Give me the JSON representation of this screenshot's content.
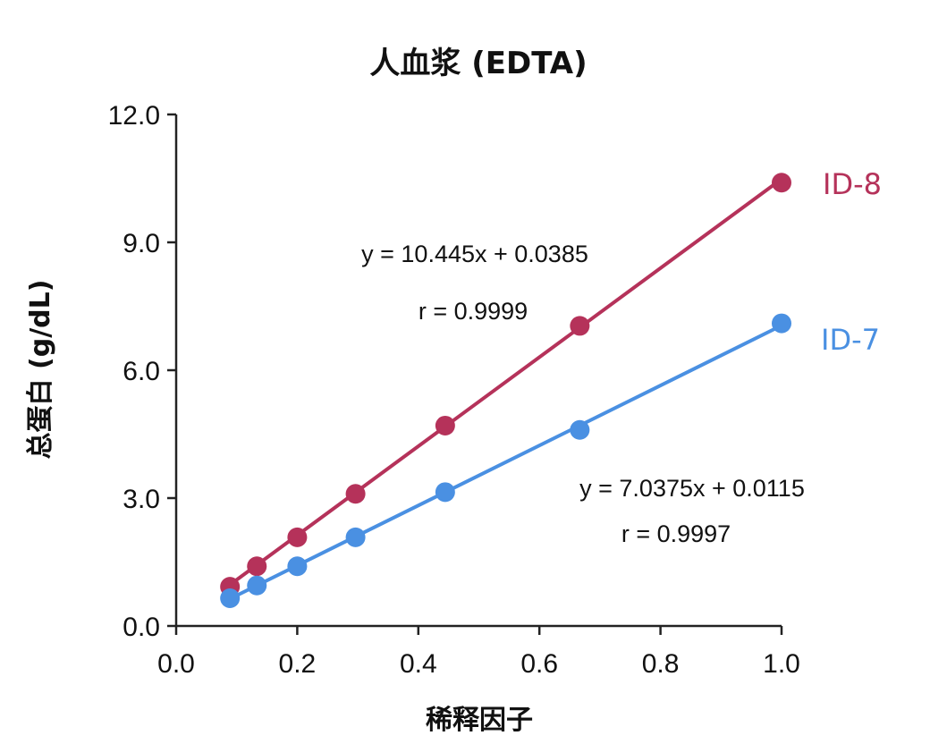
{
  "colors": {
    "id8": "#b5325a",
    "id7": "#4a90e2",
    "axis": "#222222",
    "text": "#111111"
  },
  "chart_data": {
    "type": "scatter",
    "title": "人血浆 (EDTA)",
    "xlabel": "稀释因子",
    "ylabel": "总蛋白 (g/dL)",
    "xlim": [
      0.0,
      1.0
    ],
    "ylim": [
      0.0,
      12.0
    ],
    "x_ticks": [
      "0.0",
      "0.2",
      "0.4",
      "0.6",
      "0.8",
      "1.0"
    ],
    "y_ticks": [
      "0.0",
      "3.0",
      "6.0",
      "9.0",
      "12.0"
    ],
    "x_tick_values": [
      0.0,
      0.2,
      0.4,
      0.6,
      0.8,
      1.0
    ],
    "y_tick_values": [
      0.0,
      3.0,
      6.0,
      9.0,
      12.0
    ],
    "grid": false,
    "series": [
      {
        "name": "ID-8",
        "x": [
          0.0889,
          0.1333,
          0.2,
          0.2963,
          0.4444,
          0.6667,
          1.0
        ],
        "y": [
          0.92,
          1.4,
          2.08,
          3.1,
          4.7,
          7.04,
          10.4
        ],
        "fit": {
          "slope": 10.445,
          "intercept": 0.0385
        },
        "equation": "y = 10.445x + 0.0385",
        "r": "r = 0.9999"
      },
      {
        "name": "ID-7",
        "x": [
          0.0889,
          0.1333,
          0.2,
          0.2963,
          0.4444,
          0.6667,
          1.0
        ],
        "y": [
          0.65,
          0.95,
          1.4,
          2.08,
          3.14,
          4.6,
          7.1
        ],
        "fit": {
          "slope": 7.0375,
          "intercept": 0.0115
        },
        "equation": "y = 7.0375x + 0.0115",
        "r": "r = 0.9997"
      }
    ]
  }
}
